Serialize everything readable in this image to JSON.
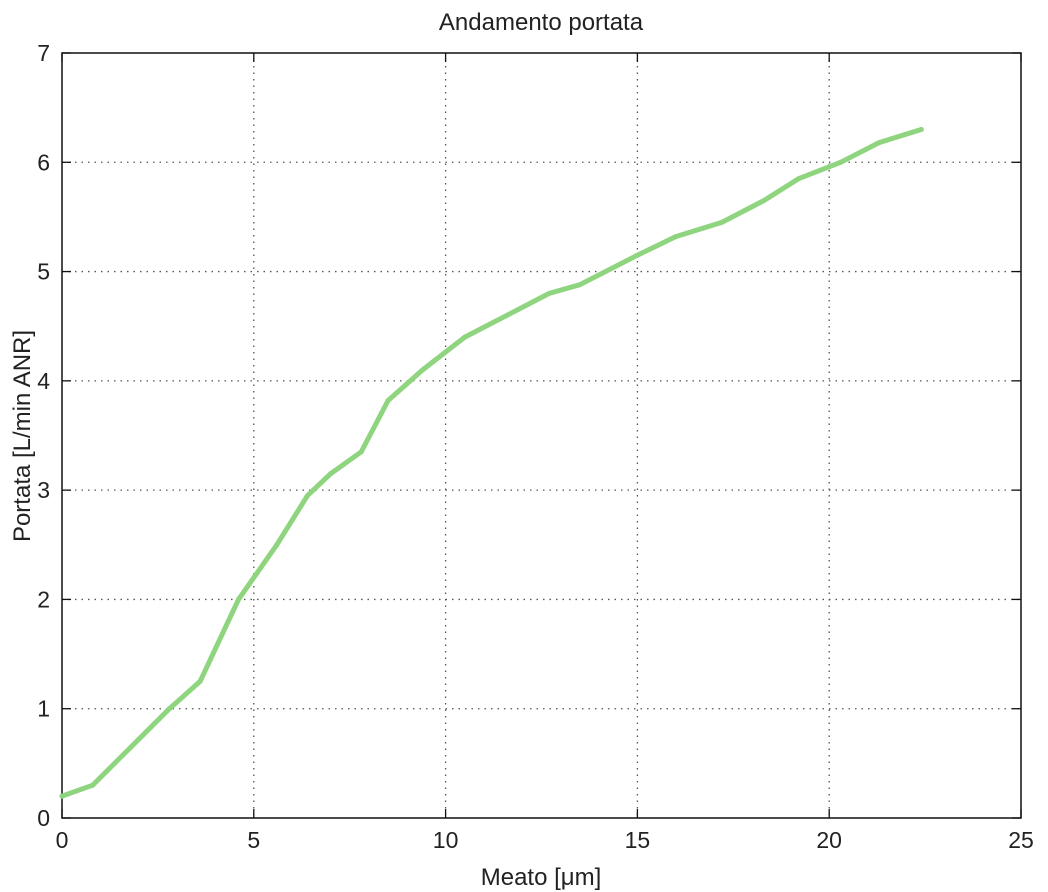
{
  "chart_data": {
    "type": "line",
    "title": "Andamento portata",
    "xlabel": "Meato [μm]",
    "ylabel": "Portata [L/min ANR]",
    "xlim": [
      0,
      25
    ],
    "ylim": [
      0,
      7
    ],
    "x_ticks": [
      0,
      5,
      10,
      15,
      20,
      25
    ],
    "y_ticks": [
      0,
      1,
      2,
      3,
      4,
      5,
      6,
      7
    ],
    "x_tick_labels": [
      "0",
      "5",
      "10",
      "15",
      "20",
      "25"
    ],
    "y_tick_labels": [
      "0",
      "1",
      "2",
      "3",
      "4",
      "5",
      "6",
      "7"
    ],
    "grid": true,
    "grid_style": "dotted",
    "series": [
      {
        "color": "#8fd47e",
        "x": [
          0.0,
          0.8,
          1.8,
          2.8,
          3.6,
          4.6,
          5.6,
          6.4,
          7.0,
          7.8,
          8.5,
          9.4,
          10.5,
          11.6,
          12.7,
          13.5,
          15.0,
          16.0,
          17.2,
          18.3,
          19.2,
          20.3,
          21.3,
          22.4
        ],
        "y": [
          0.2,
          0.3,
          0.65,
          1.0,
          1.25,
          2.0,
          2.5,
          2.95,
          3.15,
          3.35,
          3.82,
          4.1,
          4.4,
          4.6,
          4.8,
          4.88,
          5.15,
          5.32,
          5.45,
          5.65,
          5.85,
          6.0,
          6.18,
          6.3
        ]
      }
    ]
  }
}
